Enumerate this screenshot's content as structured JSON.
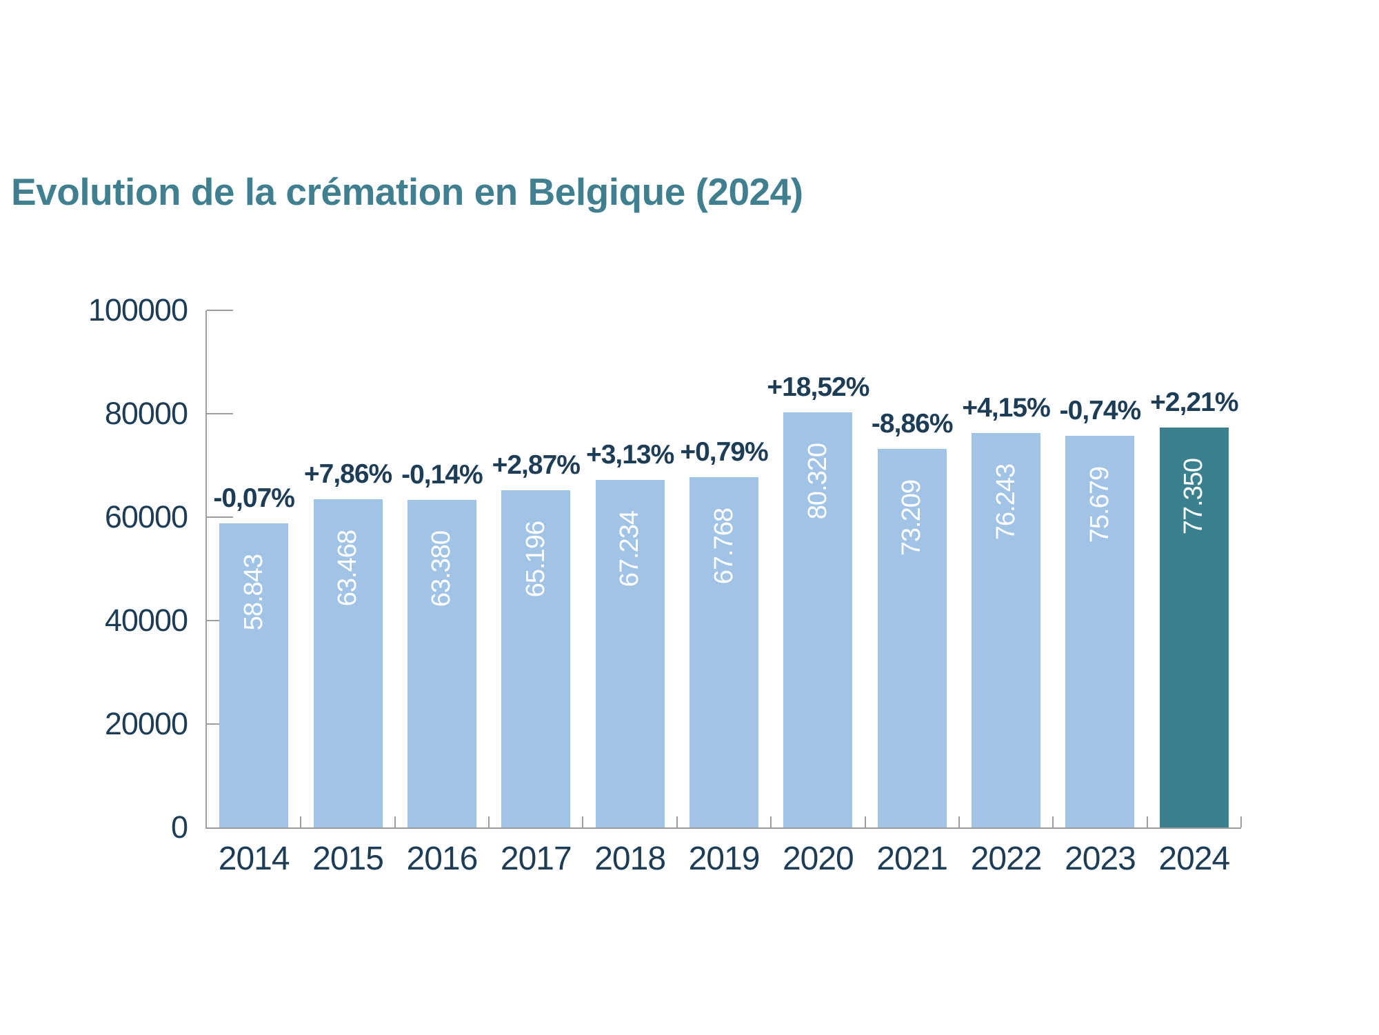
{
  "title": {
    "text": "Evolution de la crémation en Belgique (2024)",
    "color": "#3F7F8F"
  },
  "chart_data": {
    "type": "bar",
    "title": "Evolution de la crémation en Belgique (2024)",
    "xlabel": "",
    "ylabel": "",
    "categories": [
      "2014",
      "2015",
      "2016",
      "2017",
      "2018",
      "2019",
      "2020",
      "2021",
      "2022",
      "2023",
      "2024"
    ],
    "values": [
      58843,
      63468,
      63380,
      65196,
      67234,
      67768,
      80320,
      73209,
      76243,
      75679,
      77350
    ],
    "bar_value_labels": [
      "58.843",
      "63.468",
      "63.380",
      "65.196",
      "67.234",
      "67.768",
      "80.320",
      "73.209",
      "76.243",
      "75.679",
      "77.350"
    ],
    "pct_change_labels": [
      "-0,07%",
      "+7,86%",
      "-0,14%",
      "+2,87%",
      "+3,13%",
      "+0,79%",
      "+18,52%",
      "-8,86%",
      "+4,15%",
      "-0,74%",
      "+2,21%"
    ],
    "ylim": [
      0,
      100000
    ],
    "y_ticks": [
      0,
      20000,
      40000,
      60000,
      80000,
      100000
    ],
    "y_tick_labels": [
      "0",
      "20000",
      "40000",
      "60000",
      "80000",
      "100000"
    ],
    "grid": "off",
    "legend": "none",
    "highlight_index": 10,
    "colors": {
      "bar_default": "#A0C3E6",
      "bar_highlight": "#3A808F",
      "axis": "#9A9EA2",
      "label_text": "#1D3C55",
      "bar_value_text": "#FFFFFF"
    }
  }
}
